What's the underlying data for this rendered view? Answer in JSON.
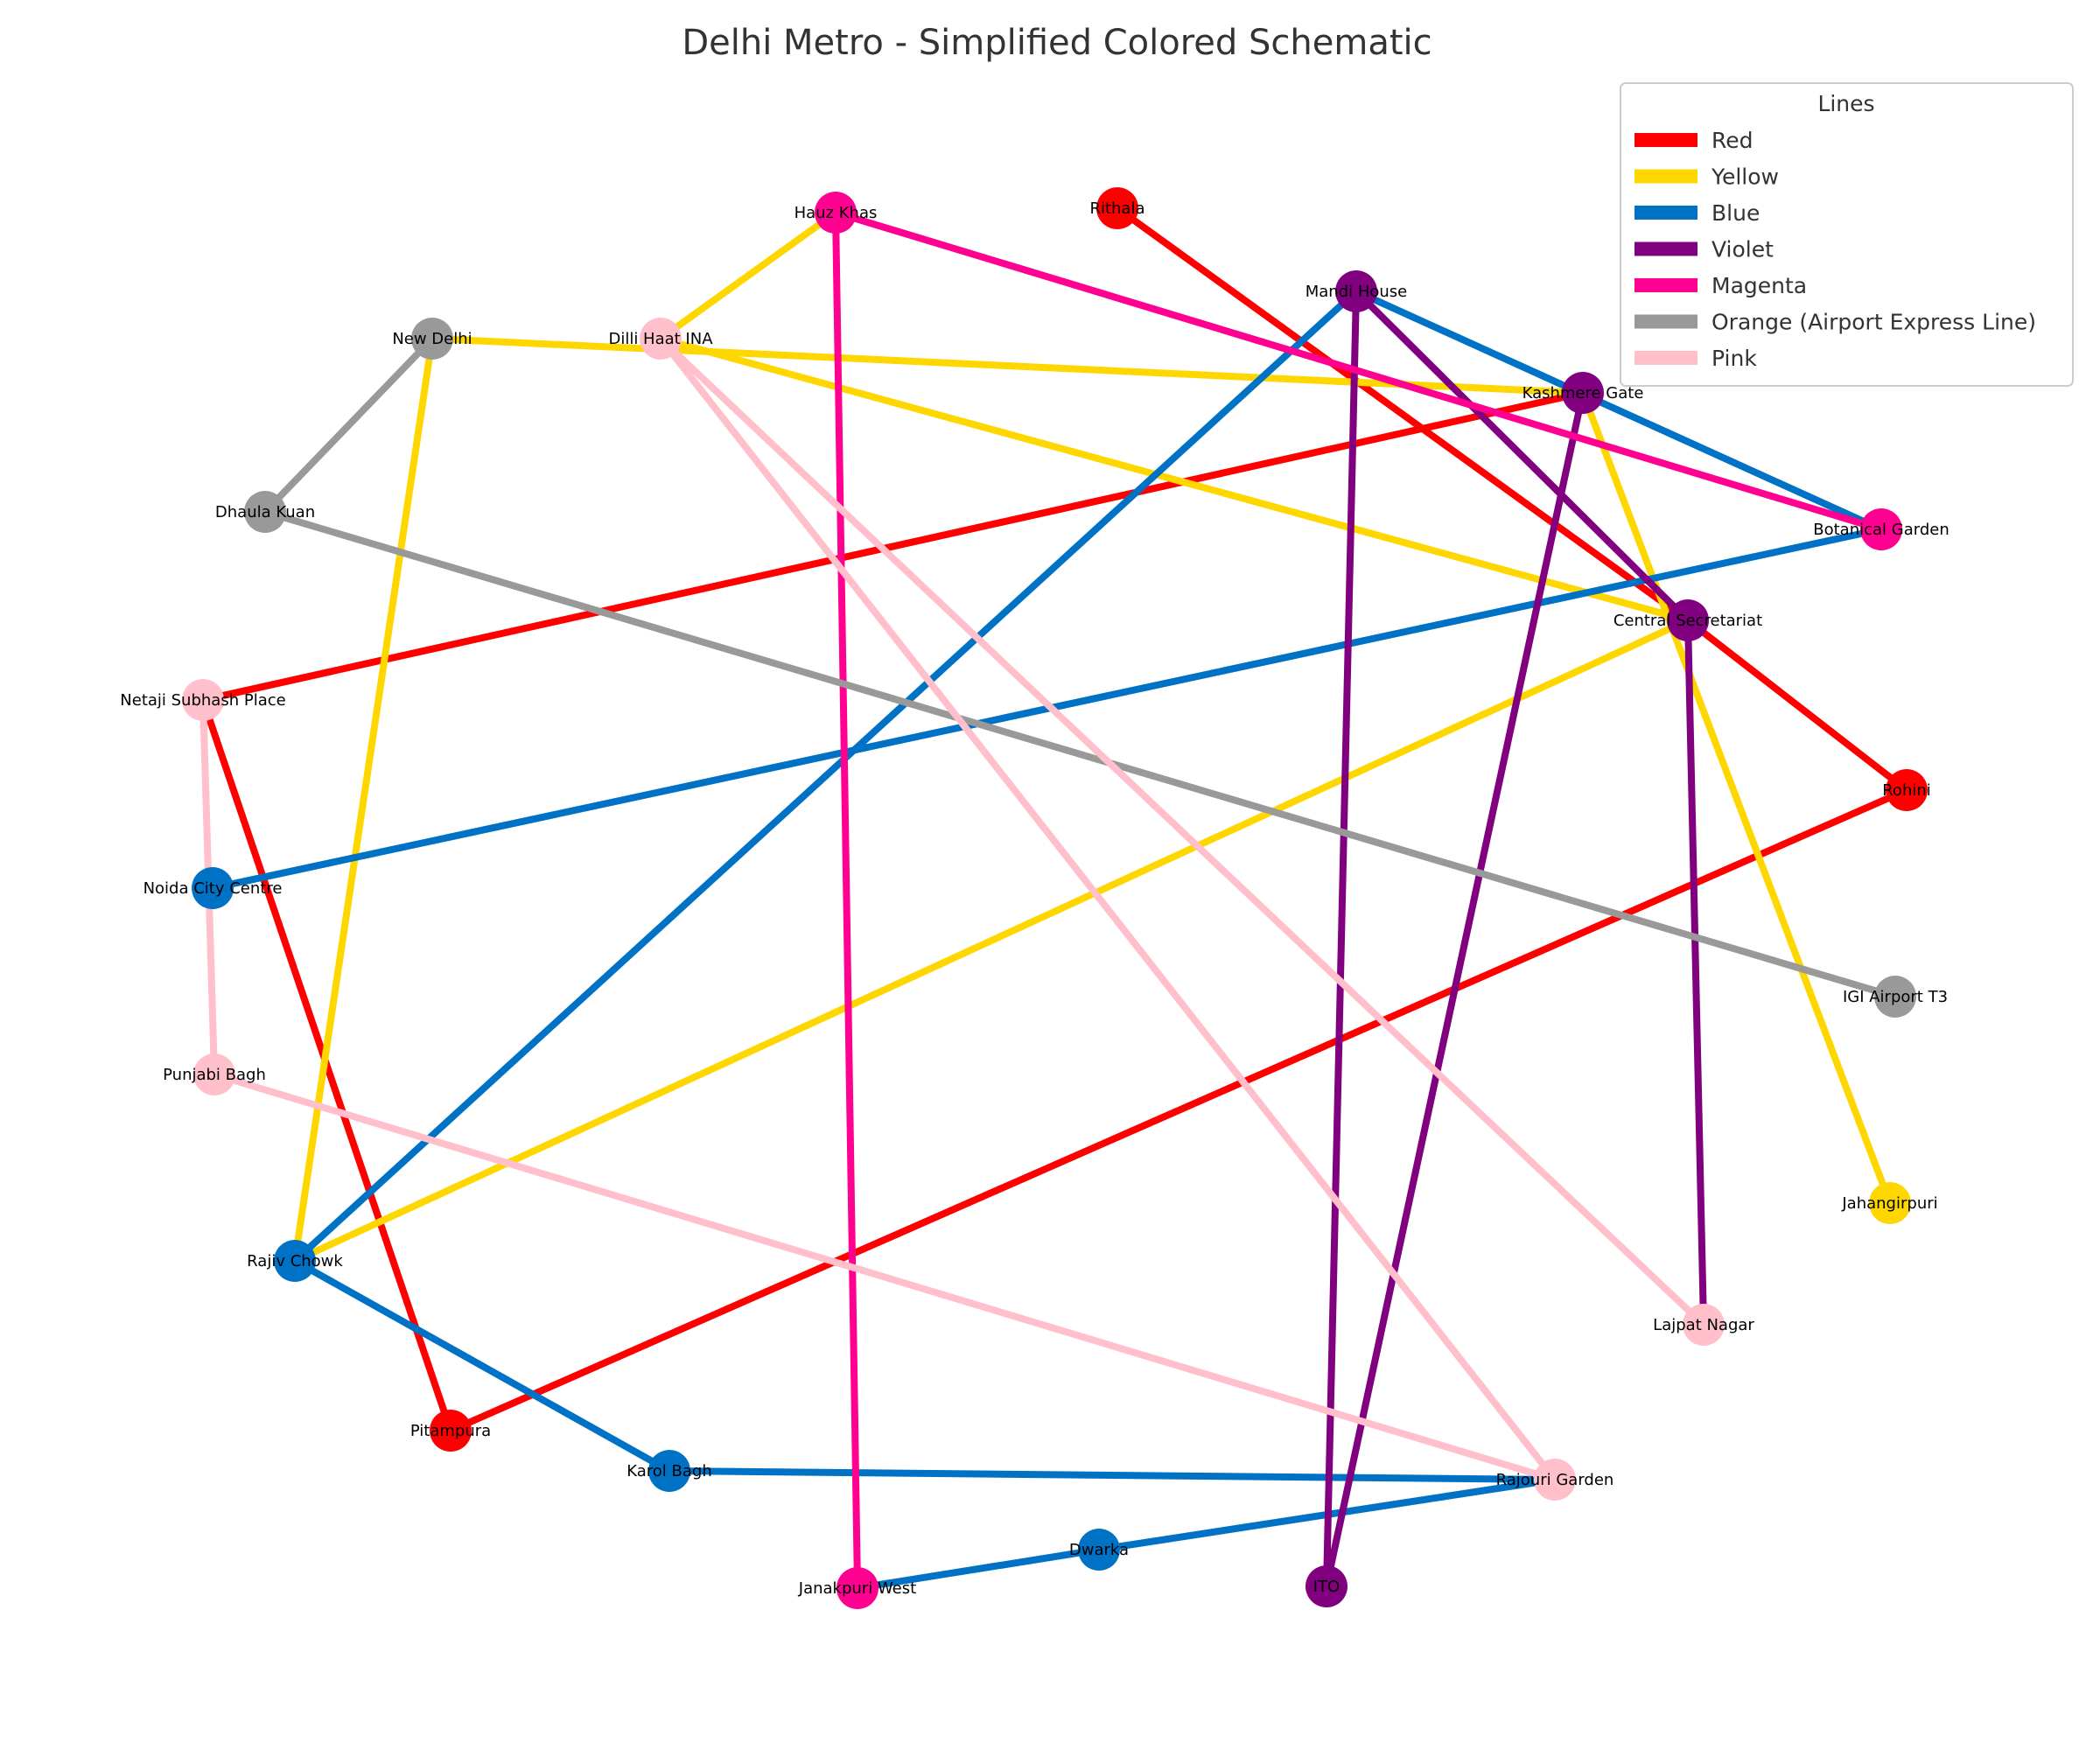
{
  "title": "Delhi Metro - Simplified Colored Schematic",
  "legend": {
    "title": "Lines",
    "items": [
      {
        "name": "Red",
        "color": "#ff0000"
      },
      {
        "name": "Yellow",
        "color": "#ffd700"
      },
      {
        "name": "Blue",
        "color": "#0072c6"
      },
      {
        "name": "Violet",
        "color": "#800080"
      },
      {
        "name": "Magenta",
        "color": "#ff0090"
      },
      {
        "name": "Orange (Airport Express Line)",
        "color": "#999999"
      },
      {
        "name": "Pink",
        "color": "#ffc0cb"
      }
    ]
  },
  "stations": [
    {
      "id": "rithala",
      "name": "Rithala",
      "color": "#ff0000"
    },
    {
      "id": "hauz_khas",
      "name": "Hauz Khas",
      "color": "#ff0090"
    },
    {
      "id": "mandi_house",
      "name": "Mandi House",
      "color": "#800080"
    },
    {
      "id": "new_delhi",
      "name": "New Delhi",
      "color": "#999999"
    },
    {
      "id": "dilli_haat",
      "name": "Dilli Haat INA",
      "color": "#ffc0cb"
    },
    {
      "id": "kashmere_gate",
      "name": "Kashmere Gate",
      "color": "#800080"
    },
    {
      "id": "dhaula_kuan",
      "name": "Dhaula Kuan",
      "color": "#999999"
    },
    {
      "id": "botanical_garden",
      "name": "Botanical Garden",
      "color": "#ff0090"
    },
    {
      "id": "central_secretariat",
      "name": "Central Secretariat",
      "color": "#800080"
    },
    {
      "id": "netaji_subhash",
      "name": "Netaji Subhash Place",
      "color": "#ffc0cb"
    },
    {
      "id": "rohini",
      "name": "Rohini",
      "color": "#ff0000"
    },
    {
      "id": "noida_city",
      "name": "Noida City Centre",
      "color": "#0072c6"
    },
    {
      "id": "igi_t3",
      "name": "IGI Airport T3",
      "color": "#999999"
    },
    {
      "id": "punjabi_bagh",
      "name": "Punjabi Bagh",
      "color": "#ffc0cb"
    },
    {
      "id": "jahangirpuri",
      "name": "Jahangirpuri",
      "color": "#ffd700"
    },
    {
      "id": "rajiv_chowk",
      "name": "Rajiv Chowk",
      "color": "#0072c6"
    },
    {
      "id": "lajpat_nagar",
      "name": "Lajpat Nagar",
      "color": "#ffc0cb"
    },
    {
      "id": "pitampura",
      "name": "Pitampura",
      "color": "#ff0000"
    },
    {
      "id": "karol_bagh",
      "name": "Karol Bagh",
      "color": "#0072c6"
    },
    {
      "id": "rajouri_garden",
      "name": "Rajouri Garden",
      "color": "#ffc0cb"
    },
    {
      "id": "dwarka",
      "name": "Dwarka",
      "color": "#0072c6"
    },
    {
      "id": "janakpuri_west",
      "name": "Janakpuri West",
      "color": "#ff0090"
    },
    {
      "id": "ito",
      "name": "ITO",
      "color": "#800080"
    }
  ],
  "connections": [
    {
      "line": "Red",
      "from": "rithala",
      "to": "central_secretariat"
    },
    {
      "line": "Red",
      "from": "central_secretariat",
      "to": "rohini"
    },
    {
      "line": "Red",
      "from": "rohini",
      "to": "pitampura"
    },
    {
      "line": "Red",
      "from": "pitampura",
      "to": "netaji_subhash"
    },
    {
      "line": "Red",
      "from": "netaji_subhash",
      "to": "kashmere_gate"
    },
    {
      "line": "Yellow",
      "from": "hauz_khas",
      "to": "dilli_haat"
    },
    {
      "line": "Yellow",
      "from": "dilli_haat",
      "to": "central_secretariat"
    },
    {
      "line": "Yellow",
      "from": "central_secretariat",
      "to": "rajiv_chowk"
    },
    {
      "line": "Yellow",
      "from": "rajiv_chowk",
      "to": "new_delhi"
    },
    {
      "line": "Yellow",
      "from": "new_delhi",
      "to": "kashmere_gate"
    },
    {
      "line": "Yellow",
      "from": "kashmere_gate",
      "to": "jahangirpuri"
    },
    {
      "line": "Blue",
      "from": "mandi_house",
      "to": "botanical_garden"
    },
    {
      "line": "Blue",
      "from": "botanical_garden",
      "to": "noida_city"
    },
    {
      "line": "Blue",
      "from": "mandi_house",
      "to": "rajiv_chowk"
    },
    {
      "line": "Blue",
      "from": "rajiv_chowk",
      "to": "karol_bagh"
    },
    {
      "line": "Blue",
      "from": "karol_bagh",
      "to": "rajouri_garden"
    },
    {
      "line": "Blue",
      "from": "rajouri_garden",
      "to": "dwarka"
    },
    {
      "line": "Blue",
      "from": "dwarka",
      "to": "janakpuri_west"
    },
    {
      "line": "Violet",
      "from": "kashmere_gate",
      "to": "ito"
    },
    {
      "line": "Violet",
      "from": "ito",
      "to": "mandi_house"
    },
    {
      "line": "Violet",
      "from": "mandi_house",
      "to": "central_secretariat"
    },
    {
      "line": "Violet",
      "from": "central_secretariat",
      "to": "lajpat_nagar"
    },
    {
      "line": "Magenta",
      "from": "janakpuri_west",
      "to": "hauz_khas"
    },
    {
      "line": "Magenta",
      "from": "hauz_khas",
      "to": "botanical_garden"
    },
    {
      "line": "Orange (Airport Express Line)",
      "from": "new_delhi",
      "to": "dhaula_kuan"
    },
    {
      "line": "Orange (Airport Express Line)",
      "from": "dhaula_kuan",
      "to": "igi_t3"
    },
    {
      "line": "Pink",
      "from": "netaji_subhash",
      "to": "punjabi_bagh"
    },
    {
      "line": "Pink",
      "from": "punjabi_bagh",
      "to": "rajouri_garden"
    },
    {
      "line": "Pink",
      "from": "rajouri_garden",
      "to": "dilli_haat"
    },
    {
      "line": "Pink",
      "from": "dilli_haat",
      "to": "lajpat_nagar"
    }
  ]
}
